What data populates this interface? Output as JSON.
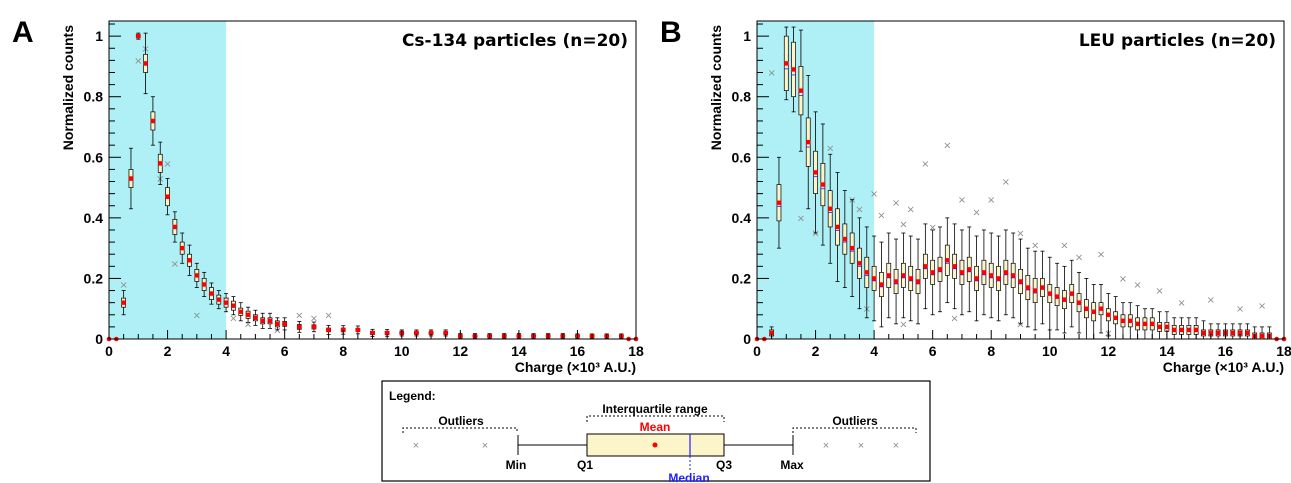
{
  "legend": {
    "title": "Legend:",
    "outliers_left": "Outliers",
    "outliers_right": "Outliers",
    "iqr": "Interquartile range",
    "mean": "Mean",
    "median": "Median",
    "min": "Min",
    "q1": "Q1",
    "q3": "Q3",
    "max": "Max"
  },
  "colors": {
    "highlight": "#aef0f5",
    "box_fill": "#fbf5c9",
    "mean": "#ff0000",
    "median": "#1f1fff",
    "outlier": "#8c8c8c"
  },
  "chart_data": [
    {
      "panel": "A",
      "type": "box",
      "title": "Cs-134 particles (n=20)",
      "xlabel": "Charge (×10³ A.U.)",
      "ylabel": "Normalized counts",
      "xlim": [
        0,
        18
      ],
      "ylim": [
        0,
        1.05
      ],
      "xticks": [
        "0",
        "2",
        "4",
        "6",
        "8",
        "10",
        "12",
        "14",
        "16",
        "18"
      ],
      "yticks": [
        "0",
        "0.2",
        "0.4",
        "0.6",
        "0.8",
        "1"
      ],
      "highlight_x": [
        0,
        4
      ],
      "x": [
        0.5,
        0.75,
        1.0,
        1.25,
        1.5,
        1.75,
        2.0,
        2.25,
        2.5,
        2.75,
        3.0,
        3.25,
        3.5,
        3.75,
        4.0,
        4.25,
        4.5,
        4.75,
        5.0,
        5.25,
        5.5,
        5.75,
        6.0,
        6.5,
        7.0,
        7.5,
        8.0,
        8.5,
        9.0,
        9.5,
        10.0,
        10.5,
        11.0,
        11.5,
        12.0,
        12.5,
        13.0,
        13.5,
        14.0,
        14.5,
        15.0,
        15.5,
        16.0,
        16.5,
        17.0,
        17.5
      ],
      "mean": [
        0.12,
        0.53,
        1.0,
        0.91,
        0.72,
        0.58,
        0.47,
        0.37,
        0.3,
        0.26,
        0.21,
        0.18,
        0.15,
        0.13,
        0.12,
        0.11,
        0.09,
        0.08,
        0.07,
        0.06,
        0.06,
        0.05,
        0.05,
        0.04,
        0.04,
        0.03,
        0.03,
        0.03,
        0.02,
        0.02,
        0.02,
        0.02,
        0.02,
        0.02,
        0.01,
        0.01,
        0.01,
        0.01,
        0.01,
        0.01,
        0.01,
        0.01,
        0.01,
        0.01,
        0.01,
        0.01
      ],
      "box_half": [
        0.015,
        0.03,
        0.005,
        0.03,
        0.03,
        0.03,
        0.03,
        0.025,
        0.02,
        0.02,
        0.02,
        0.02,
        0.02,
        0.015,
        0.015,
        0.015,
        0.012,
        0.012,
        0.01,
        0.01,
        0.01,
        0.01,
        0.008,
        0.008,
        0.007,
        0.006,
        0.006,
        0.005,
        0.005,
        0.005,
        0.004,
        0.004,
        0.004,
        0.004,
        0.003,
        0.003,
        0.003,
        0.003,
        0.003,
        0.003,
        0.003,
        0.003,
        0.003,
        0.003,
        0.003,
        0.003
      ],
      "whisker_half": [
        0.04,
        0.1,
        0.01,
        0.1,
        0.08,
        0.07,
        0.06,
        0.05,
        0.05,
        0.05,
        0.04,
        0.04,
        0.035,
        0.03,
        0.03,
        0.03,
        0.03,
        0.025,
        0.025,
        0.025,
        0.025,
        0.02,
        0.02,
        0.018,
        0.016,
        0.015,
        0.014,
        0.013,
        0.012,
        0.011,
        0.01,
        0.01,
        0.01,
        0.01,
        0.008,
        0.008,
        0.008,
        0.008,
        0.008,
        0.008,
        0.008,
        0.008,
        0.007,
        0.007,
        0.007,
        0.007
      ],
      "zero_points": [
        0,
        0.25,
        17.75,
        18
      ],
      "outliers": [
        [
          0.5,
          0.18
        ],
        [
          1.0,
          0.92
        ],
        [
          1.25,
          0.96
        ],
        [
          1.75,
          0.53
        ],
        [
          2.0,
          0.58
        ],
        [
          2.25,
          0.25
        ],
        [
          3.0,
          0.08
        ],
        [
          3.5,
          0.14
        ],
        [
          4.0,
          0.13
        ],
        [
          4.25,
          0.07
        ],
        [
          4.75,
          0.05
        ],
        [
          5.75,
          0.03
        ],
        [
          6.5,
          0.08
        ],
        [
          7.0,
          0.07
        ],
        [
          7.5,
          0.08
        ]
      ]
    },
    {
      "panel": "B",
      "type": "box",
      "title": "LEU particles (n=20)",
      "xlabel": "Charge (×10³ A.U.)",
      "ylabel": "Normalized counts",
      "xlim": [
        0,
        18
      ],
      "ylim": [
        0,
        1.05
      ],
      "xticks": [
        "0",
        "2",
        "4",
        "6",
        "8",
        "10",
        "12",
        "14",
        "16",
        "18"
      ],
      "yticks": [
        "0",
        "0.2",
        "0.4",
        "0.6",
        "0.8",
        "1"
      ],
      "highlight_x": [
        0,
        4
      ],
      "x": [
        0.5,
        0.75,
        1.0,
        1.25,
        1.5,
        1.75,
        2.0,
        2.25,
        2.5,
        2.75,
        3.0,
        3.25,
        3.5,
        3.75,
        4.0,
        4.25,
        4.5,
        4.75,
        5.0,
        5.25,
        5.5,
        5.75,
        6.0,
        6.25,
        6.5,
        6.75,
        7.0,
        7.25,
        7.5,
        7.75,
        8.0,
        8.25,
        8.5,
        8.75,
        9.0,
        9.25,
        9.5,
        9.75,
        10.0,
        10.25,
        10.5,
        10.75,
        11.0,
        11.25,
        11.5,
        11.75,
        12.0,
        12.25,
        12.5,
        12.75,
        13.0,
        13.25,
        13.5,
        13.75,
        14.0,
        14.25,
        14.5,
        14.75,
        15.0,
        15.25,
        15.5,
        15.75,
        16.0,
        16.25,
        16.5,
        16.75,
        17.0,
        17.25,
        17.5
      ],
      "mean": [
        0.02,
        0.45,
        0.91,
        0.89,
        0.82,
        0.65,
        0.55,
        0.51,
        0.43,
        0.37,
        0.33,
        0.3,
        0.25,
        0.22,
        0.2,
        0.18,
        0.21,
        0.19,
        0.21,
        0.2,
        0.19,
        0.24,
        0.22,
        0.23,
        0.26,
        0.24,
        0.22,
        0.23,
        0.2,
        0.22,
        0.21,
        0.2,
        0.22,
        0.21,
        0.19,
        0.17,
        0.16,
        0.17,
        0.15,
        0.14,
        0.13,
        0.15,
        0.12,
        0.1,
        0.09,
        0.1,
        0.08,
        0.07,
        0.06,
        0.06,
        0.05,
        0.05,
        0.05,
        0.04,
        0.04,
        0.03,
        0.03,
        0.03,
        0.03,
        0.02,
        0.02,
        0.02,
        0.02,
        0.02,
        0.02,
        0.02,
        0.01,
        0.01,
        0.01
      ],
      "box_half": [
        0.01,
        0.06,
        0.09,
        0.09,
        0.08,
        0.08,
        0.07,
        0.07,
        0.06,
        0.06,
        0.05,
        0.05,
        0.05,
        0.05,
        0.04,
        0.04,
        0.04,
        0.04,
        0.04,
        0.04,
        0.04,
        0.04,
        0.04,
        0.04,
        0.05,
        0.04,
        0.04,
        0.04,
        0.04,
        0.04,
        0.04,
        0.04,
        0.04,
        0.04,
        0.04,
        0.04,
        0.04,
        0.03,
        0.03,
        0.03,
        0.03,
        0.03,
        0.03,
        0.03,
        0.03,
        0.02,
        0.02,
        0.02,
        0.02,
        0.02,
        0.02,
        0.02,
        0.02,
        0.015,
        0.015,
        0.015,
        0.015,
        0.015,
        0.015,
        0.01,
        0.01,
        0.01,
        0.01,
        0.01,
        0.01,
        0.01,
        0.01,
        0.01,
        0.01
      ],
      "whisker_half": [
        0.02,
        0.15,
        0.12,
        0.14,
        0.2,
        0.22,
        0.2,
        0.2,
        0.18,
        0.18,
        0.16,
        0.16,
        0.15,
        0.15,
        0.14,
        0.14,
        0.14,
        0.14,
        0.14,
        0.14,
        0.14,
        0.14,
        0.14,
        0.14,
        0.14,
        0.14,
        0.14,
        0.14,
        0.14,
        0.14,
        0.14,
        0.14,
        0.14,
        0.14,
        0.14,
        0.13,
        0.13,
        0.12,
        0.12,
        0.11,
        0.11,
        0.11,
        0.1,
        0.1,
        0.09,
        0.08,
        0.07,
        0.07,
        0.06,
        0.06,
        0.06,
        0.05,
        0.05,
        0.05,
        0.05,
        0.04,
        0.04,
        0.04,
        0.04,
        0.04,
        0.03,
        0.03,
        0.03,
        0.03,
        0.03,
        0.03,
        0.03,
        0.03,
        0.03
      ],
      "zero_points": [
        0,
        0.25,
        17.75,
        18
      ],
      "outliers": [
        [
          0.5,
          0.88
        ],
        [
          1.0,
          0.93
        ],
        [
          1.5,
          0.4
        ],
        [
          2.0,
          0.35
        ],
        [
          2.5,
          0.63
        ],
        [
          3.25,
          0.46
        ],
        [
          3.5,
          0.43
        ],
        [
          4.0,
          0.48
        ],
        [
          4.25,
          0.41
        ],
        [
          4.75,
          0.45
        ],
        [
          5.0,
          0.38
        ],
        [
          5.25,
          0.43
        ],
        [
          5.75,
          0.58
        ],
        [
          6.0,
          0.37
        ],
        [
          6.5,
          0.64
        ],
        [
          7.0,
          0.46
        ],
        [
          7.5,
          0.42
        ],
        [
          8.0,
          0.46
        ],
        [
          8.5,
          0.52
        ],
        [
          9.0,
          0.35
        ],
        [
          9.5,
          0.31
        ],
        [
          10.5,
          0.31
        ],
        [
          11.0,
          0.27
        ],
        [
          11.75,
          0.28
        ],
        [
          12.5,
          0.2
        ],
        [
          13.0,
          0.18
        ],
        [
          13.75,
          0.16
        ],
        [
          14.5,
          0.12
        ],
        [
          15.5,
          0.13
        ],
        [
          16.5,
          0.1
        ],
        [
          17.25,
          0.11
        ],
        [
          3.75,
          0.1
        ],
        [
          5.0,
          0.05
        ],
        [
          6.75,
          0.07
        ],
        [
          9.0,
          0.05
        ],
        [
          12.0,
          0.02
        ]
      ]
    }
  ]
}
